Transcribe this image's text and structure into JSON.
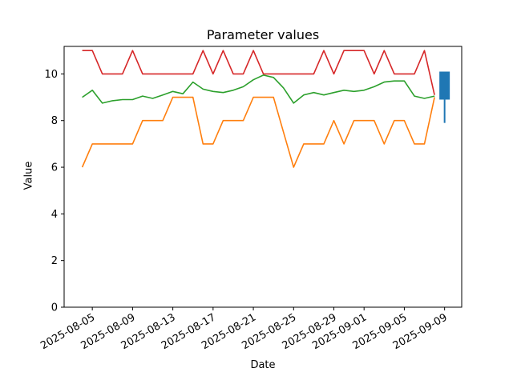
{
  "figure": {
    "title": "Parameter values",
    "xlabel": "Date",
    "ylabel": "Value"
  },
  "chart_data": {
    "type": "line",
    "title": "Parameter values",
    "xlabel": "Date",
    "ylabel": "Value",
    "grid": false,
    "legend": null,
    "ylim": [
      0,
      11.18
    ],
    "xlim_day_range": [
      -1.8,
      37.7
    ],
    "yticks": [
      0,
      2,
      4,
      6,
      8,
      10
    ],
    "xticks": [
      "2025-08-05",
      "2025-08-09",
      "2025-08-13",
      "2025-08-17",
      "2025-08-21",
      "2025-08-25",
      "2025-08-29",
      "2025-09-01",
      "2025-09-05",
      "2025-09-09"
    ],
    "x_dates": [
      "2025-08-04",
      "2025-08-05",
      "2025-08-06",
      "2025-08-07",
      "2025-08-08",
      "2025-08-09",
      "2025-08-10",
      "2025-08-11",
      "2025-08-12",
      "2025-08-13",
      "2025-08-14",
      "2025-08-15",
      "2025-08-16",
      "2025-08-17",
      "2025-08-18",
      "2025-08-19",
      "2025-08-20",
      "2025-08-21",
      "2025-08-22",
      "2025-08-23",
      "2025-08-24",
      "2025-08-25",
      "2025-08-26",
      "2025-08-27",
      "2025-08-28",
      "2025-08-29",
      "2025-08-30",
      "2025-08-31",
      "2025-09-01",
      "2025-09-02",
      "2025-09-03",
      "2025-09-04",
      "2025-09-05",
      "2025-09-06",
      "2025-09-07",
      "2025-09-08"
    ],
    "series": [
      {
        "name": "red-line",
        "color": "#d62728",
        "values": [
          11,
          11,
          10,
          10,
          10,
          11,
          10,
          10,
          10,
          10,
          10,
          10,
          11,
          10,
          11,
          10,
          10,
          11,
          10,
          10,
          10,
          10,
          10,
          10,
          11,
          10,
          11,
          11,
          11,
          10,
          11,
          10,
          10,
          10,
          11,
          9.1
        ]
      },
      {
        "name": "green-line",
        "color": "#2ca02c",
        "values": [
          9.0,
          9.3,
          8.75,
          8.85,
          8.9,
          8.9,
          9.05,
          8.95,
          9.1,
          9.25,
          9.15,
          9.65,
          9.35,
          9.25,
          9.2,
          9.3,
          9.45,
          9.75,
          9.95,
          9.85,
          9.4,
          8.75,
          9.1,
          9.2,
          9.1,
          9.2,
          9.3,
          9.25,
          9.3,
          9.45,
          9.65,
          9.7,
          9.7,
          9.05,
          8.95,
          9.05
        ]
      },
      {
        "name": "orange-line",
        "color": "#ff7f0e",
        "values": [
          6,
          7,
          7,
          7,
          7,
          7,
          8,
          8,
          8,
          9,
          9,
          9,
          7,
          7,
          8,
          8,
          8,
          9,
          9,
          9,
          7.5,
          6,
          7,
          7,
          7,
          8,
          7,
          8,
          8,
          8,
          7,
          8,
          8,
          7,
          7,
          9
        ]
      }
    ],
    "candlestick": {
      "date": "2025-09-09",
      "color": "#1f77b4",
      "body_top": 10.1,
      "body_bottom": 8.9,
      "whisker_low": 7.9
    }
  }
}
